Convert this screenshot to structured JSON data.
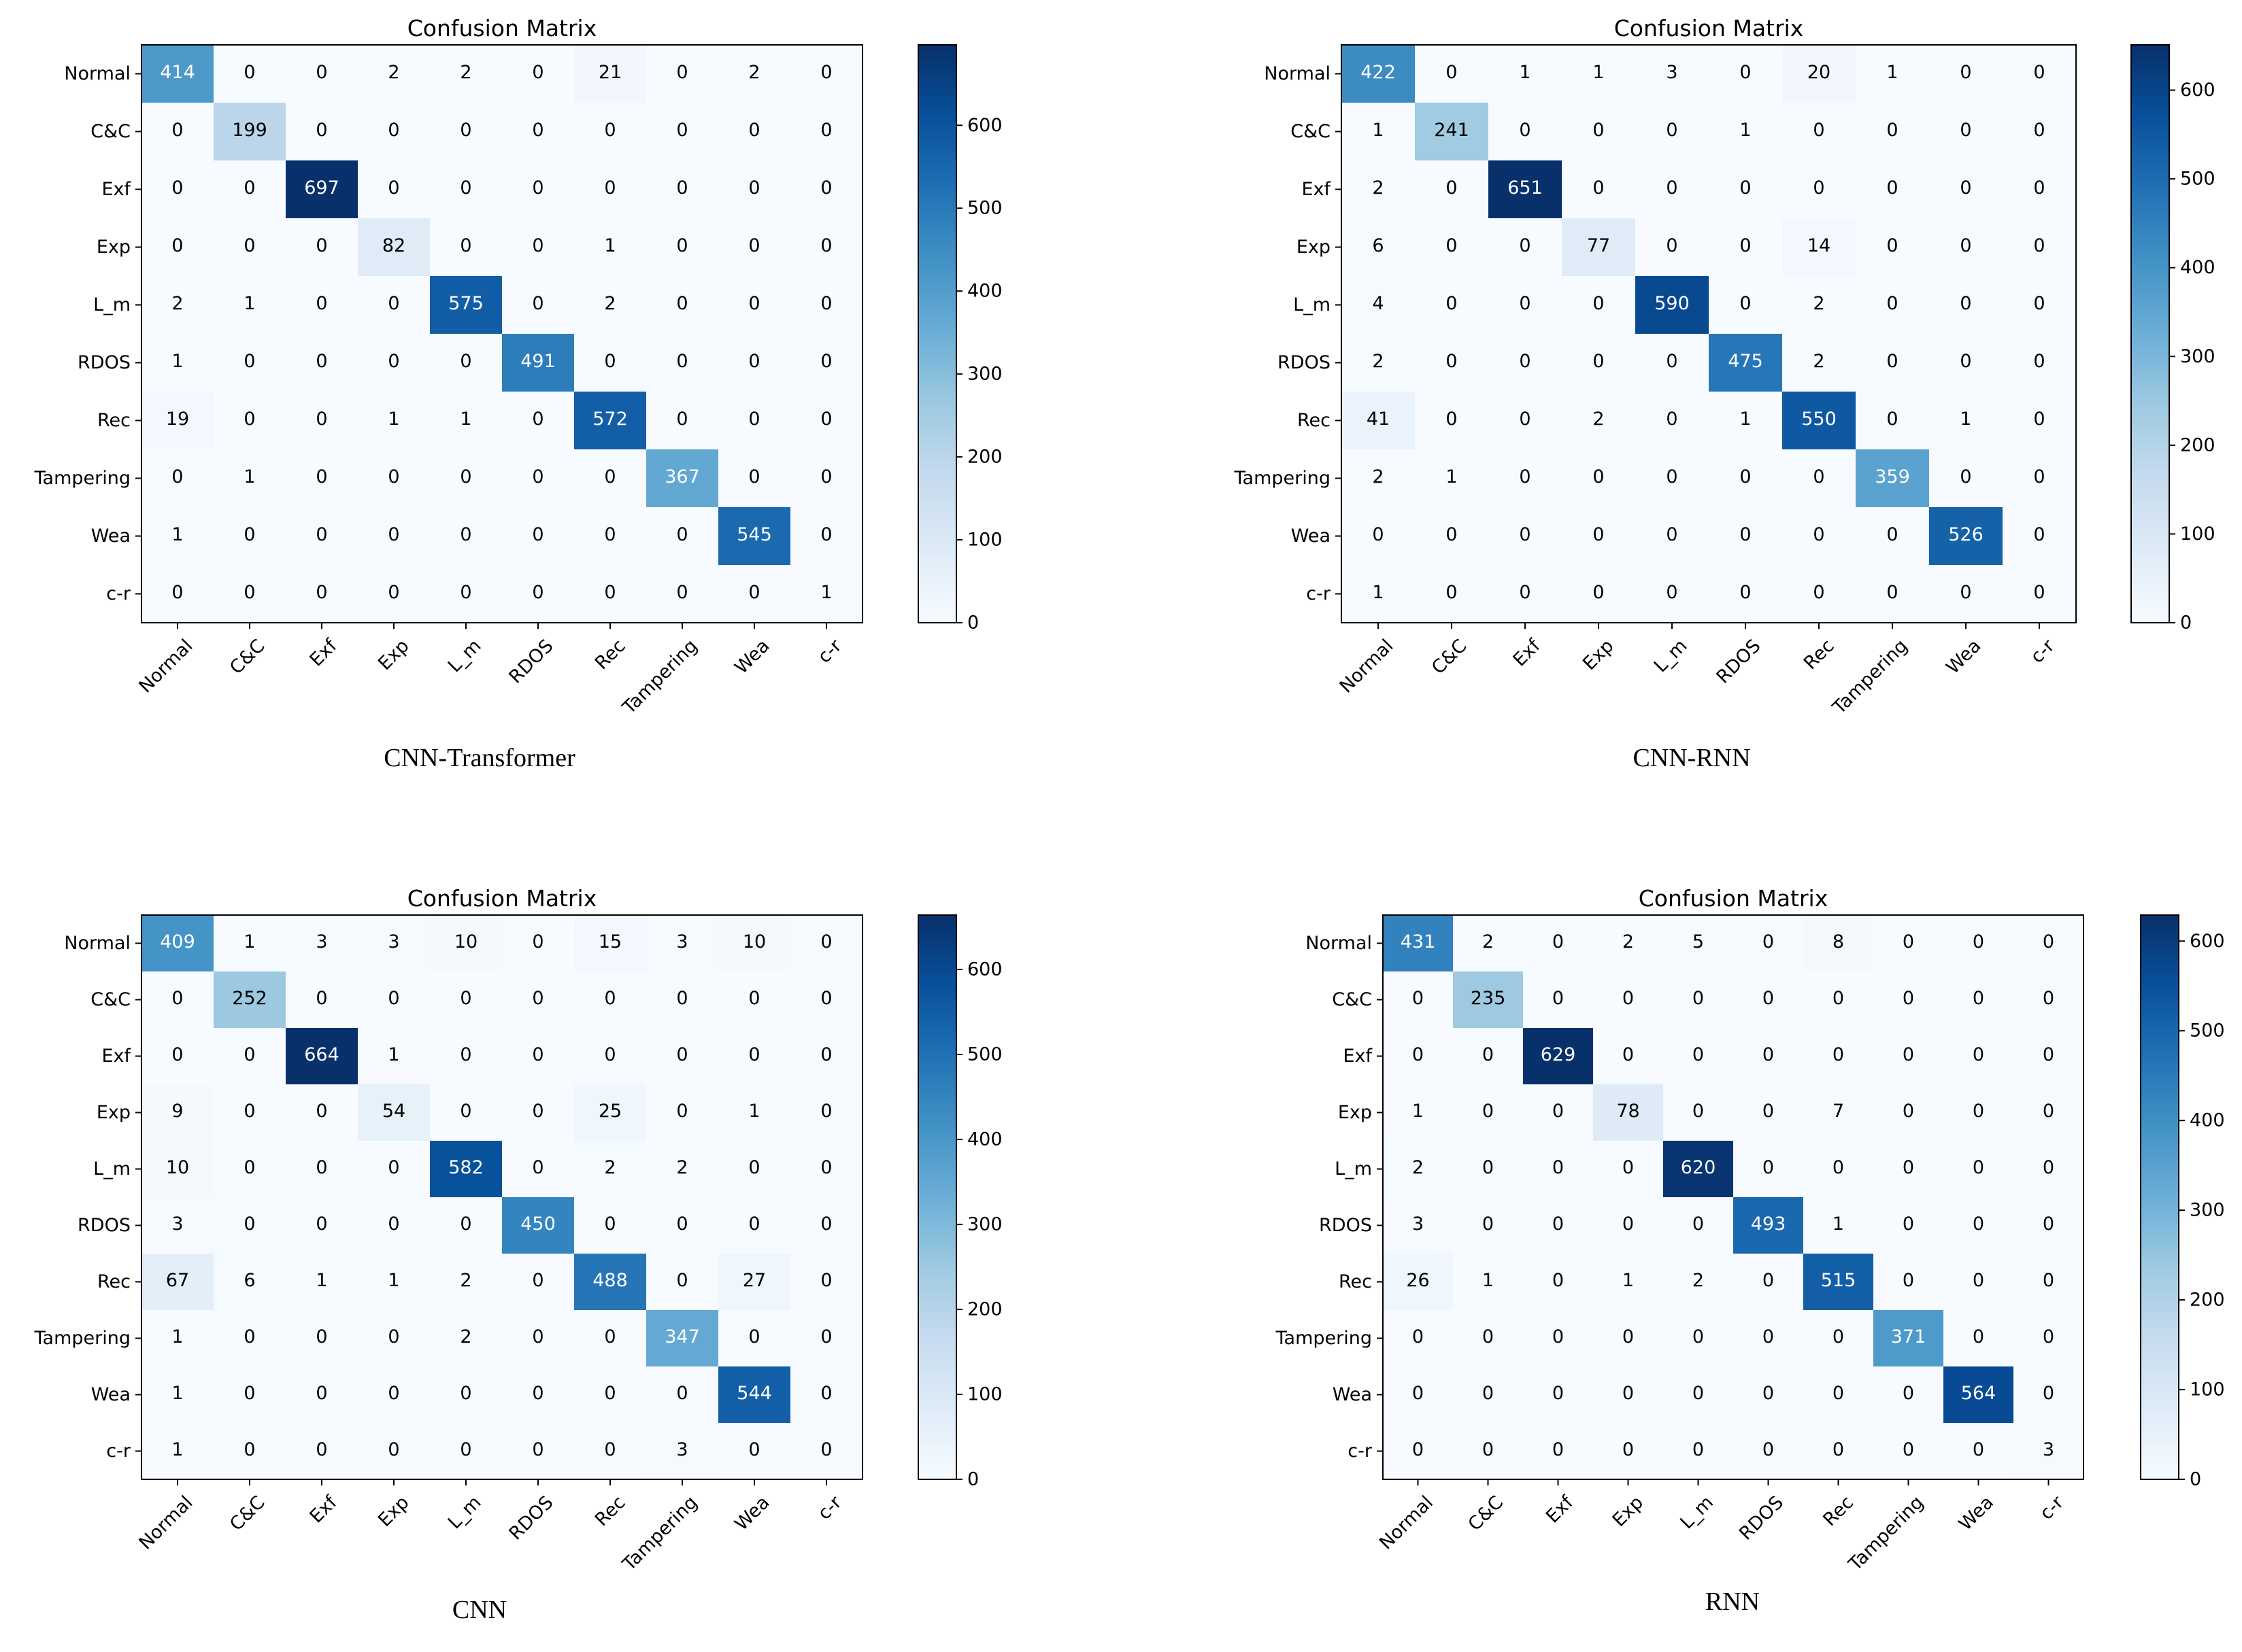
{
  "chart_data": [
    {
      "type": "heatmap",
      "title": "Confusion Matrix",
      "caption": "CNN-Transformer",
      "categories": [
        "Normal",
        "C&C",
        "Exf",
        "Exp",
        "L_m",
        "RDOS",
        "Rec",
        "Tampering",
        "Wea",
        "c-r"
      ],
      "matrix": [
        [
          414,
          0,
          0,
          2,
          2,
          0,
          21,
          0,
          2,
          0
        ],
        [
          0,
          199,
          0,
          0,
          0,
          0,
          0,
          0,
          0,
          0
        ],
        [
          0,
          0,
          697,
          0,
          0,
          0,
          0,
          0,
          0,
          0
        ],
        [
          0,
          0,
          0,
          82,
          0,
          0,
          1,
          0,
          0,
          0
        ],
        [
          2,
          1,
          0,
          0,
          575,
          0,
          2,
          0,
          0,
          0
        ],
        [
          1,
          0,
          0,
          0,
          0,
          491,
          0,
          0,
          0,
          0
        ],
        [
          19,
          0,
          0,
          1,
          1,
          0,
          572,
          0,
          0,
          0
        ],
        [
          0,
          1,
          0,
          0,
          0,
          0,
          0,
          367,
          0,
          0
        ],
        [
          1,
          0,
          0,
          0,
          0,
          0,
          0,
          0,
          545,
          0
        ],
        [
          0,
          0,
          0,
          0,
          0,
          0,
          0,
          0,
          0,
          1
        ]
      ],
      "colorbar": {
        "min": 0,
        "max": 697,
        "ticks": [
          0,
          100,
          200,
          300,
          400,
          500,
          600
        ]
      }
    },
    {
      "type": "heatmap",
      "title": "Confusion Matrix",
      "caption": "CNN-RNN",
      "categories": [
        "Normal",
        "C&C",
        "Exf",
        "Exp",
        "L_m",
        "RDOS",
        "Rec",
        "Tampering",
        "Wea",
        "c-r"
      ],
      "matrix": [
        [
          422,
          0,
          1,
          1,
          3,
          0,
          20,
          1,
          0,
          0
        ],
        [
          1,
          241,
          0,
          0,
          0,
          1,
          0,
          0,
          0,
          0
        ],
        [
          2,
          0,
          651,
          0,
          0,
          0,
          0,
          0,
          0,
          0
        ],
        [
          6,
          0,
          0,
          77,
          0,
          0,
          14,
          0,
          0,
          0
        ],
        [
          4,
          0,
          0,
          0,
          590,
          0,
          2,
          0,
          0,
          0
        ],
        [
          2,
          0,
          0,
          0,
          0,
          475,
          2,
          0,
          0,
          0
        ],
        [
          41,
          0,
          0,
          2,
          0,
          1,
          550,
          0,
          1,
          0
        ],
        [
          2,
          1,
          0,
          0,
          0,
          0,
          0,
          359,
          0,
          0
        ],
        [
          0,
          0,
          0,
          0,
          0,
          0,
          0,
          0,
          526,
          0
        ],
        [
          1,
          0,
          0,
          0,
          0,
          0,
          0,
          0,
          0,
          0
        ]
      ],
      "colorbar": {
        "min": 0,
        "max": 651,
        "ticks": [
          0,
          100,
          200,
          300,
          400,
          500,
          600
        ]
      }
    },
    {
      "type": "heatmap",
      "title": "Confusion Matrix",
      "caption": "CNN",
      "categories": [
        "Normal",
        "C&C",
        "Exf",
        "Exp",
        "L_m",
        "RDOS",
        "Rec",
        "Tampering",
        "Wea",
        "c-r"
      ],
      "matrix": [
        [
          409,
          1,
          3,
          3,
          10,
          0,
          15,
          3,
          10,
          0
        ],
        [
          0,
          252,
          0,
          0,
          0,
          0,
          0,
          0,
          0,
          0
        ],
        [
          0,
          0,
          664,
          1,
          0,
          0,
          0,
          0,
          0,
          0
        ],
        [
          9,
          0,
          0,
          54,
          0,
          0,
          25,
          0,
          1,
          0
        ],
        [
          10,
          0,
          0,
          0,
          582,
          0,
          2,
          2,
          0,
          0
        ],
        [
          3,
          0,
          0,
          0,
          0,
          450,
          0,
          0,
          0,
          0
        ],
        [
          67,
          6,
          1,
          1,
          2,
          0,
          488,
          0,
          27,
          0
        ],
        [
          1,
          0,
          0,
          0,
          2,
          0,
          0,
          347,
          0,
          0
        ],
        [
          1,
          0,
          0,
          0,
          0,
          0,
          0,
          0,
          544,
          0
        ],
        [
          1,
          0,
          0,
          0,
          0,
          0,
          0,
          3,
          0,
          0
        ]
      ],
      "colorbar": {
        "min": 0,
        "max": 664,
        "ticks": [
          0,
          100,
          200,
          300,
          400,
          500,
          600
        ]
      }
    },
    {
      "type": "heatmap",
      "title": "Confusion Matrix",
      "caption": "RNN",
      "categories": [
        "Normal",
        "C&C",
        "Exf",
        "Exp",
        "L_m",
        "RDOS",
        "Rec",
        "Tampering",
        "Wea",
        "c-r"
      ],
      "matrix": [
        [
          431,
          2,
          0,
          2,
          5,
          0,
          8,
          0,
          0,
          0
        ],
        [
          0,
          235,
          0,
          0,
          0,
          0,
          0,
          0,
          0,
          0
        ],
        [
          0,
          0,
          629,
          0,
          0,
          0,
          0,
          0,
          0,
          0
        ],
        [
          1,
          0,
          0,
          78,
          0,
          0,
          7,
          0,
          0,
          0
        ],
        [
          2,
          0,
          0,
          0,
          620,
          0,
          0,
          0,
          0,
          0
        ],
        [
          3,
          0,
          0,
          0,
          0,
          493,
          1,
          0,
          0,
          0
        ],
        [
          26,
          1,
          0,
          1,
          2,
          0,
          515,
          0,
          0,
          0
        ],
        [
          0,
          0,
          0,
          0,
          0,
          0,
          0,
          371,
          0,
          0
        ],
        [
          0,
          0,
          0,
          0,
          0,
          0,
          0,
          0,
          564,
          0
        ],
        [
          0,
          0,
          0,
          0,
          0,
          0,
          0,
          0,
          0,
          3
        ]
      ],
      "colorbar": {
        "min": 0,
        "max": 629,
        "ticks": [
          0,
          100,
          200,
          300,
          400,
          500,
          600
        ]
      }
    }
  ]
}
